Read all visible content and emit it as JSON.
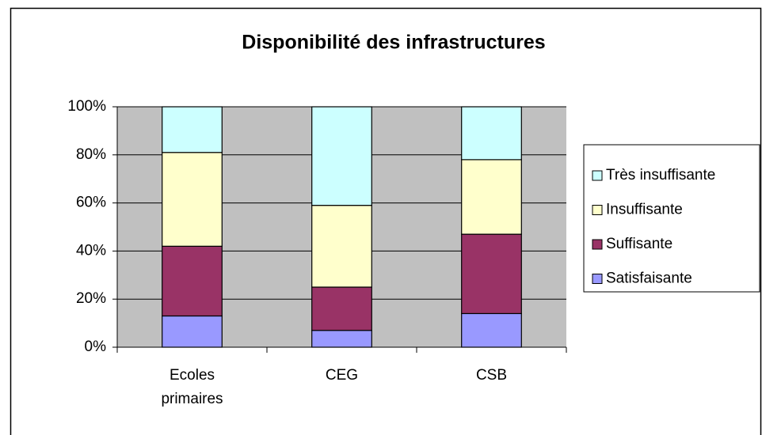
{
  "chart_data": {
    "type": "stacked_bar",
    "title": "Disponibilité des infrastructures",
    "categories": [
      "Ecoles primaires",
      "CEG",
      "CSB"
    ],
    "series": [
      {
        "name": "Satisfaisante",
        "color": "#9999ff",
        "values": [
          13,
          7,
          14
        ]
      },
      {
        "name": "Suffisante",
        "color": "#993366",
        "values": [
          29,
          18,
          33
        ]
      },
      {
        "name": "Insuffisante",
        "color": "#ffffcc",
        "values": [
          39,
          34,
          31
        ]
      },
      {
        "name": "Très insuffisante",
        "color": "#ccffff",
        "values": [
          19,
          41,
          22
        ]
      }
    ],
    "ylim": [
      0,
      100
    ],
    "yticks": [
      {
        "value": 0,
        "label": "0%"
      },
      {
        "value": 20,
        "label": "20%"
      },
      {
        "value": 40,
        "label": "40%"
      },
      {
        "value": 60,
        "label": "60%"
      },
      {
        "value": 80,
        "label": "80%"
      },
      {
        "value": 100,
        "label": "100%"
      }
    ],
    "grid": true,
    "legend": "right"
  }
}
